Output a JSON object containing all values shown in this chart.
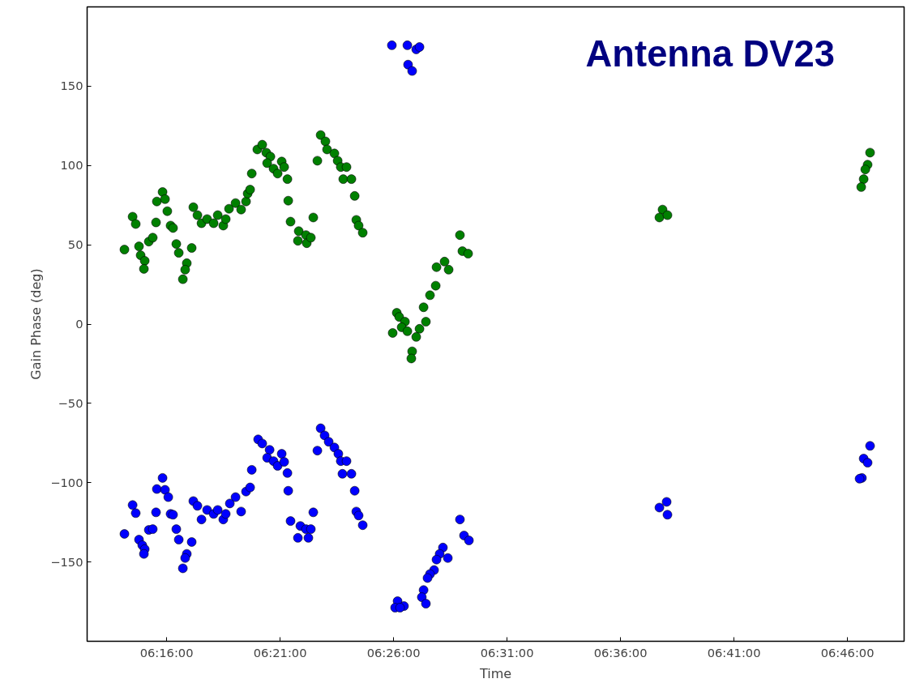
{
  "chart_data": {
    "type": "scatter",
    "title": "Antenna  DV23",
    "xlabel": "Time",
    "ylabel": "Gain Phase (deg)",
    "xlim": [
      6.2083,
      6.8083
    ],
    "ylim": [
      -200,
      200
    ],
    "xticks": [
      {
        "value": 6.266667,
        "label": "06:16:00"
      },
      {
        "value": 6.35,
        "label": "06:21:00"
      },
      {
        "value": 6.433333,
        "label": "06:26:00"
      },
      {
        "value": 6.516667,
        "label": "06:31:00"
      },
      {
        "value": 6.6,
        "label": "06:36:00"
      },
      {
        "value": 6.683333,
        "label": "06:41:00"
      },
      {
        "value": 6.766667,
        "label": "06:46:00"
      }
    ],
    "yticks": [
      -150,
      -100,
      -50,
      0,
      50,
      100,
      150
    ],
    "grid": false,
    "marker": "circle",
    "series": [
      {
        "color": "#008000",
        "x": [
          6.2357,
          6.2417,
          6.244,
          6.2464,
          6.2476,
          6.2506,
          6.25,
          6.2536,
          6.2565,
          6.2589,
          6.2595,
          6.2637,
          6.2655,
          6.2672,
          6.2696,
          6.2714,
          6.2738,
          6.2756,
          6.2815,
          6.2803,
          6.2786,
          6.2851,
          6.2863,
          6.2893,
          6.2923,
          6.2964,
          6.3012,
          6.3042,
          6.3083,
          6.3101,
          6.3125,
          6.3173,
          6.3214,
          6.325,
          6.3262,
          6.328,
          6.3292,
          6.3333,
          6.3369,
          6.3399,
          6.3429,
          6.3405,
          6.3452,
          6.3482,
          6.3512,
          6.353,
          6.3554,
          6.356,
          6.3577,
          6.3637,
          6.3631,
          6.369,
          6.3696,
          6.3726,
          6.3744,
          6.3774,
          6.3798,
          6.3833,
          6.3845,
          6.3899,
          6.3923,
          6.3946,
          6.3988,
          6.3964,
          6.4024,
          6.4048,
          6.406,
          6.4077,
          6.4107,
          6.4821,
          6.4839,
          6.4881,
          6.4649,
          6.4708,
          6.4738,
          6.4643,
          6.4601,
          6.4554,
          6.4571,
          6.4524,
          6.45,
          6.447,
          6.4464,
          6.4357,
          6.4375,
          6.4417,
          6.4393,
          6.4327,
          6.4435,
          6.6309,
          6.6286,
          6.6345,
          6.7833,
          6.7815,
          6.7798,
          6.7786,
          6.7768
        ],
        "values": [
          47.0,
          67.7,
          63.1,
          49.0,
          43.4,
          39.9,
          34.8,
          52.0,
          54.5,
          64.1,
          77.3,
          83.3,
          78.8,
          71.2,
          62.1,
          60.6,
          50.5,
          44.9,
          38.4,
          34.3,
          28.3,
          48.0,
          73.7,
          68.7,
          63.6,
          66.2,
          63.6,
          68.7,
          62.1,
          66.2,
          72.7,
          76.3,
          72.2,
          77.3,
          82.3,
          84.8,
          94.9,
          110.1,
          113.1,
          108.1,
          105.6,
          101.5,
          98.0,
          94.9,
          102.5,
          99.0,
          91.4,
          77.8,
          64.6,
          58.6,
          52.5,
          56.1,
          51.0,
          54.5,
          67.2,
          103.0,
          119.2,
          115.2,
          110.1,
          107.6,
          103.0,
          99.0,
          99.0,
          91.4,
          91.4,
          80.8,
          65.7,
          62.1,
          57.6,
          56.1,
          46.0,
          44.4,
          35.9,
          39.4,
          34.3,
          24.2,
          18.2,
          10.6,
          1.5,
          -3.0,
          -8.1,
          -17.2,
          -21.7,
          7.1,
          4.5,
          1.5,
          -2.0,
          -5.6,
          -4.5,
          72.2,
          67.2,
          68.7,
          108.1,
          100.5,
          97.5,
          91.4,
          86.4
        ]
      },
      {
        "color": "#0000ff",
        "x": [
          6.2357,
          6.2417,
          6.244,
          6.2464,
          6.2488,
          6.2506,
          6.25,
          6.2536,
          6.2565,
          6.2589,
          6.2595,
          6.2637,
          6.2655,
          6.2679,
          6.2696,
          6.2714,
          6.2738,
          6.2756,
          6.2815,
          6.2803,
          6.2786,
          6.2851,
          6.2863,
          6.2893,
          6.2923,
          6.2964,
          6.3012,
          6.3042,
          6.3083,
          6.3101,
          6.3131,
          6.3173,
          6.3214,
          6.325,
          6.328,
          6.3292,
          6.3339,
          6.3369,
          6.3423,
          6.3405,
          6.3452,
          6.3482,
          6.3512,
          6.353,
          6.3554,
          6.356,
          6.3577,
          6.3649,
          6.3631,
          6.369,
          6.3708,
          6.3726,
          6.3744,
          6.3774,
          6.3798,
          6.3827,
          6.3857,
          6.3899,
          6.3928,
          6.3946,
          6.3988,
          6.3958,
          6.4024,
          6.4048,
          6.406,
          6.4077,
          6.4107,
          6.4321,
          6.4435,
          6.45,
          6.4524,
          6.444,
          6.447,
          6.4821,
          6.4851,
          6.4887,
          6.4696,
          6.4672,
          6.4732,
          6.4649,
          6.4631,
          6.4601,
          6.4583,
          6.4554,
          6.4541,
          6.4571,
          6.4363,
          6.4345,
          6.441,
          6.4381,
          6.6286,
          6.6339,
          6.6345,
          6.7833,
          6.7786,
          6.7815,
          6.7773,
          6.7756
        ],
        "values": [
          -132.3,
          -114.1,
          -119.2,
          -135.9,
          -139.4,
          -141.9,
          -144.9,
          -129.8,
          -129.3,
          -118.7,
          -104.0,
          -97.0,
          -104.5,
          -109.1,
          -119.7,
          -120.2,
          -129.3,
          -135.9,
          -144.9,
          -147.5,
          -154.0,
          -137.4,
          -111.6,
          -114.6,
          -123.2,
          -117.2,
          -119.7,
          -117.2,
          -123.2,
          -119.7,
          -113.1,
          -109.1,
          -118.2,
          -105.6,
          -103.0,
          -91.9,
          -72.7,
          -75.3,
          -79.3,
          -84.3,
          -86.4,
          -89.4,
          -81.8,
          -86.9,
          -93.9,
          -105.1,
          -124.2,
          -127.3,
          -134.8,
          -129.3,
          -134.8,
          -129.3,
          -118.7,
          -79.8,
          -65.7,
          -70.2,
          -74.2,
          -77.8,
          -81.8,
          -86.4,
          -86.4,
          -94.4,
          -94.4,
          -105.1,
          -118.2,
          -120.7,
          -126.8,
          175.8,
          175.8,
          173.2,
          174.7,
          163.6,
          159.6,
          -123.2,
          -133.3,
          -136.4,
          -140.9,
          -144.9,
          -147.5,
          -148.5,
          -155.1,
          -157.6,
          -160.1,
          -167.7,
          -172.2,
          -176.3,
          -174.7,
          -178.8,
          -177.8,
          -178.8,
          -115.7,
          -112.1,
          -120.2,
          -76.8,
          -84.8,
          -87.4,
          -97.0,
          -97.5
        ]
      }
    ]
  }
}
